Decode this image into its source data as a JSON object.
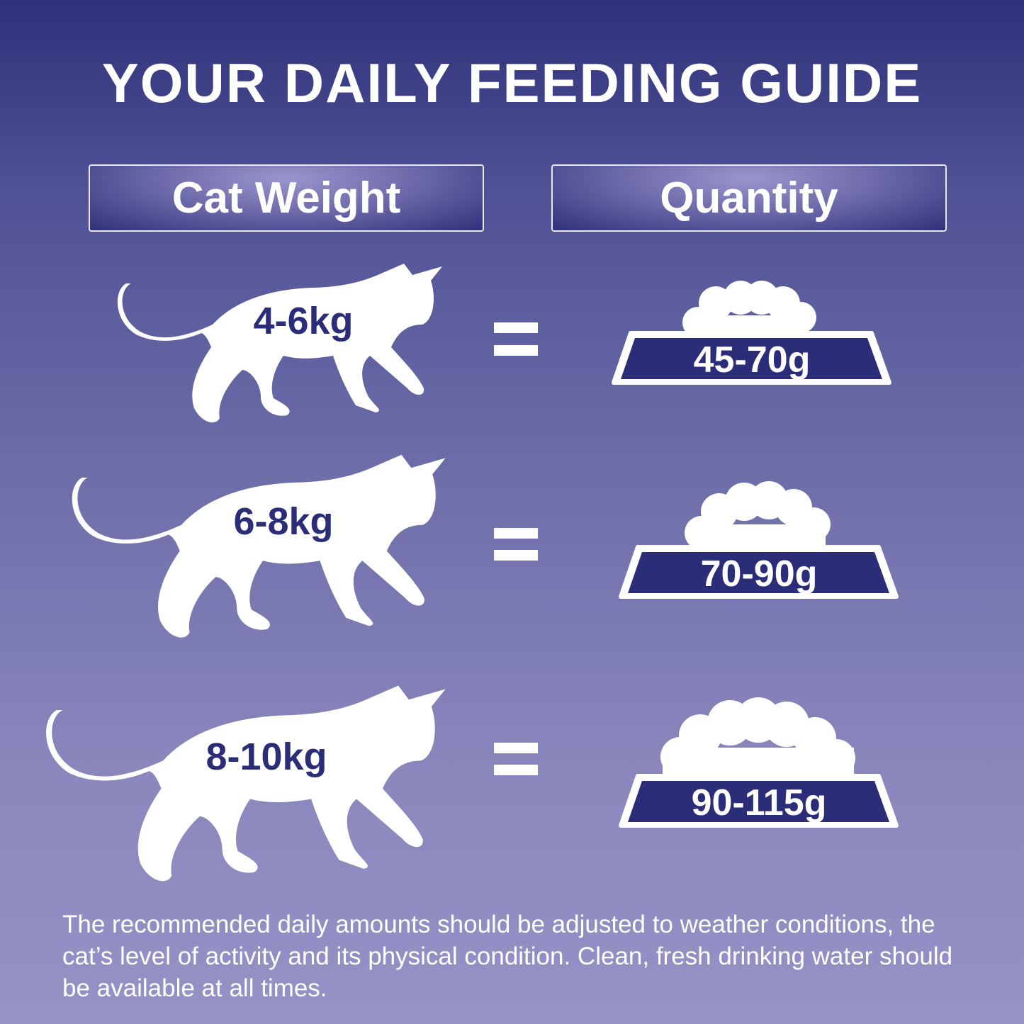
{
  "title": "YOUR DAILY FEEDING GUIDE",
  "headers": {
    "weight": "Cat Weight",
    "quantity": "Quantity"
  },
  "rows": [
    {
      "weight": "4-6kg",
      "equals": "=",
      "quantity": "45-70g"
    },
    {
      "weight": "6-8kg",
      "equals": "=",
      "quantity": "70-90g"
    },
    {
      "weight": "8-10kg",
      "equals": "=",
      "quantity": "90-115g"
    }
  ],
  "note": "The recommended daily amounts should be adjusted to weather conditions, the cat’s level of activity and its physical condition. Clean, fresh drinking water should be available at all times.",
  "colors": {
    "navy": "#2b2d78",
    "white": "#ffffff",
    "background_top": "#2e317a",
    "background_bottom": "#9692c6"
  },
  "icons": [
    "cat-silhouette-icon",
    "food-bowl-icon",
    "equals-icon"
  ]
}
